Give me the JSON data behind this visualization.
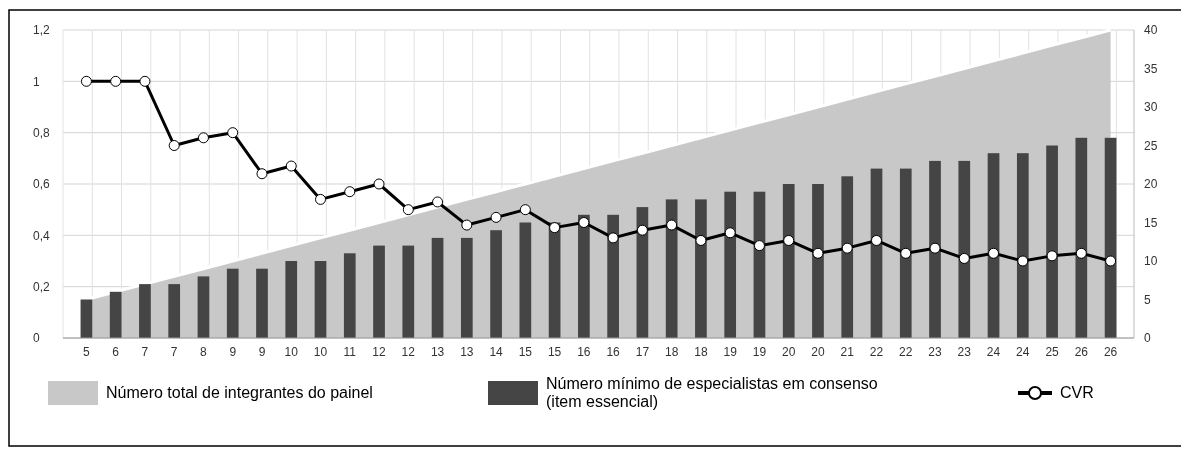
{
  "chart_data": {
    "type": "bar",
    "categories": [
      "5",
      "6",
      "7",
      "7",
      "8",
      "9",
      "9",
      "10",
      "10",
      "11",
      "12",
      "12",
      "13",
      "13",
      "14",
      "15",
      "15",
      "16",
      "16",
      "17",
      "18",
      "18",
      "19",
      "19",
      "20",
      "20",
      "21",
      "22",
      "22",
      "23",
      "23",
      "24",
      "24",
      "25",
      "26",
      "26"
    ],
    "series": [
      {
        "name": "Número total de integrantes do painel",
        "type": "area",
        "axis": "y2",
        "color": "#c8c8c8",
        "values": [
          5,
          6,
          7,
          8,
          9,
          10,
          11,
          12,
          13,
          14,
          15,
          16,
          17,
          18,
          19,
          20,
          21,
          22,
          23,
          24,
          25,
          26,
          27,
          28,
          29,
          30,
          31,
          32,
          33,
          34,
          35,
          36,
          37,
          38,
          39,
          40
        ]
      },
      {
        "name": "Número mínimo de especialistas em consenso (item essencial)",
        "axis": "y2",
        "color": "#454545",
        "values": [
          5,
          6,
          7,
          7,
          8,
          9,
          9,
          10,
          10,
          11,
          12,
          12,
          13,
          13,
          14,
          15,
          15,
          16,
          16,
          17,
          18,
          18,
          19,
          19,
          20,
          20,
          21,
          22,
          22,
          23,
          23,
          24,
          24,
          25,
          26,
          26
        ]
      },
      {
        "name": "CVR",
        "type": "line",
        "color": "#000000",
        "marker": "circle",
        "values": [
          1,
          1,
          1,
          0.75,
          0.78,
          0.8,
          0.64,
          0.67,
          0.54,
          0.57,
          0.6,
          0.5,
          0.53,
          0.44,
          0.47,
          0.5,
          0.43,
          0.45,
          0.39,
          0.42,
          0.44,
          0.38,
          0.41,
          0.36,
          0.38,
          0.33,
          0.35,
          0.38,
          0.33,
          0.35,
          0.31,
          0.33,
          0.3,
          0.32,
          0.33,
          0.3
        ]
      }
    ],
    "ylim": [
      0,
      1.2
    ],
    "yticks": [
      0,
      {
        "value": 0.2,
        "label": "0,2"
      },
      {
        "value": 0.4,
        "label": "0,4"
      },
      {
        "value": 0.6,
        "label": "0,6"
      },
      {
        "value": 0.8,
        "label": "0,8"
      },
      1,
      {
        "value": 1.2,
        "label": "1,2"
      }
    ],
    "y2lim": [
      0,
      40
    ],
    "y2ticks": [
      0,
      5,
      10,
      15,
      20,
      25,
      30,
      35,
      40
    ],
    "grid": true,
    "legend": "bottom"
  }
}
